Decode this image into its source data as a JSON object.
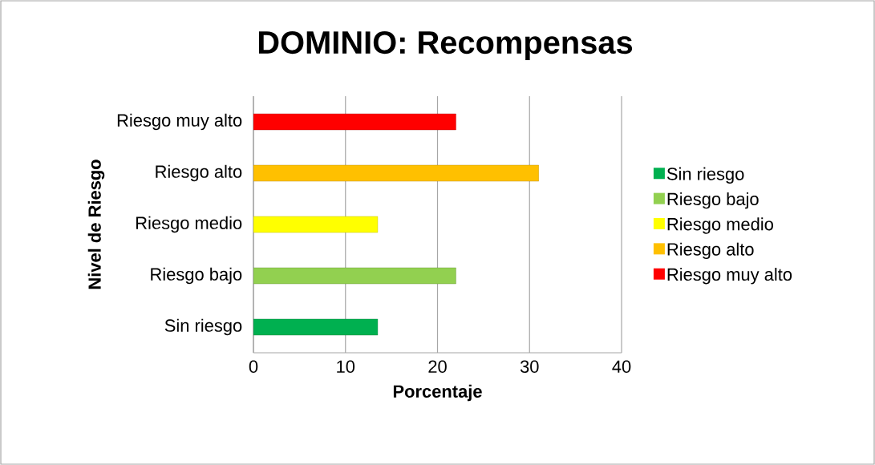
{
  "chart_data": {
    "type": "bar",
    "orientation": "horizontal",
    "title": "DOMINIO: Recompensas",
    "xlabel": "Porcentaje",
    "ylabel": "Nivel de Riesgo",
    "categories": [
      "Riesgo muy alto",
      "Riesgo alto",
      "Riesgo medio",
      "Riesgo bajo",
      "Sin riesgo"
    ],
    "series": [
      {
        "name": "Sin riesgo",
        "color": "#00b050",
        "values": [
          null,
          null,
          null,
          null,
          13.5
        ]
      },
      {
        "name": "Riesgo bajo",
        "color": "#92d050",
        "values": [
          null,
          null,
          null,
          22,
          null
        ]
      },
      {
        "name": "Riesgo medio",
        "color": "#ffff00",
        "values": [
          null,
          null,
          13.5,
          null,
          null
        ]
      },
      {
        "name": "Riesgo alto",
        "color": "#ffc000",
        "values": [
          null,
          31,
          null,
          null,
          null
        ]
      },
      {
        "name": "Riesgo muy alto",
        "color": "#ff0000",
        "values": [
          22,
          null,
          null,
          null,
          null
        ]
      }
    ],
    "xlim": [
      0,
      40
    ],
    "xticks": [
      0,
      10,
      20,
      30,
      40
    ],
    "grid": "x",
    "legend": "right"
  }
}
